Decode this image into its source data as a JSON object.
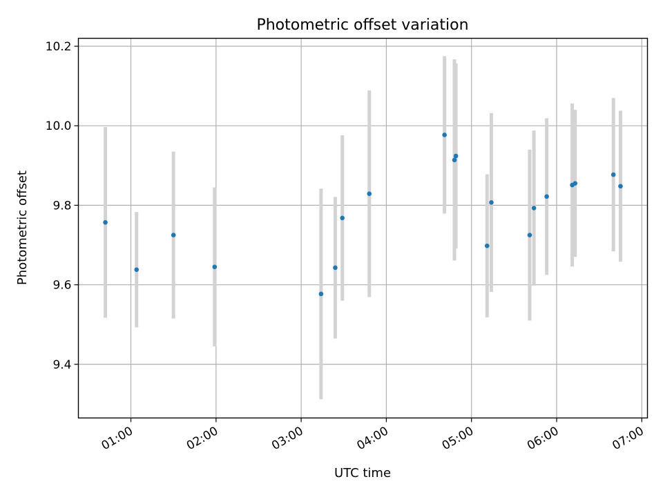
{
  "chart_data": {
    "type": "scatter",
    "title": "Photometric offset variation",
    "xlabel": "UTC time",
    "ylabel": "Photometric offset",
    "grid": true,
    "xlim": [
      "00:23",
      "07:04"
    ],
    "ylim": [
      9.265,
      10.22
    ],
    "x_ticks": [
      "01:00",
      "02:00",
      "03:00",
      "04:00",
      "05:00",
      "06:00",
      "07:00"
    ],
    "y_ticks": [
      9.4,
      9.6,
      9.8,
      10.0,
      10.2
    ],
    "y_tick_labels": [
      "9.4",
      "9.6",
      "9.8",
      "10.0",
      "10.2"
    ],
    "marker_color": "#1f77b4",
    "errorbar_color": "#d3d3d3",
    "points": [
      {
        "x": "00:42",
        "y": 9.757,
        "err": 0.24
      },
      {
        "x": "01:04",
        "y": 9.638,
        "err": 0.145
      },
      {
        "x": "01:30",
        "y": 9.725,
        "err": 0.21
      },
      {
        "x": "01:59",
        "y": 9.645,
        "err": 0.2
      },
      {
        "x": "03:14",
        "y": 9.577,
        "err": 0.265
      },
      {
        "x": "03:24",
        "y": 9.643,
        "err": 0.178
      },
      {
        "x": "03:29",
        "y": 9.768,
        "err": 0.208
      },
      {
        "x": "03:48",
        "y": 9.829,
        "err": 0.26
      },
      {
        "x": "04:41",
        "y": 9.977,
        "err": 0.198
      },
      {
        "x": "04:48",
        "y": 9.914,
        "err": 0.253
      },
      {
        "x": "04:49",
        "y": 9.924,
        "err": 0.233
      },
      {
        "x": "05:11",
        "y": 9.698,
        "err": 0.18
      },
      {
        "x": "05:14",
        "y": 9.807,
        "err": 0.225
      },
      {
        "x": "05:41",
        "y": 9.725,
        "err": 0.215
      },
      {
        "x": "05:44",
        "y": 9.793,
        "err": 0.195
      },
      {
        "x": "05:53",
        "y": 9.822,
        "err": 0.197
      },
      {
        "x": "06:11",
        "y": 9.851,
        "err": 0.205
      },
      {
        "x": "06:13",
        "y": 9.855,
        "err": 0.185
      },
      {
        "x": "06:40",
        "y": 9.877,
        "err": 0.193
      },
      {
        "x": "06:45",
        "y": 9.848,
        "err": 0.19
      }
    ]
  }
}
